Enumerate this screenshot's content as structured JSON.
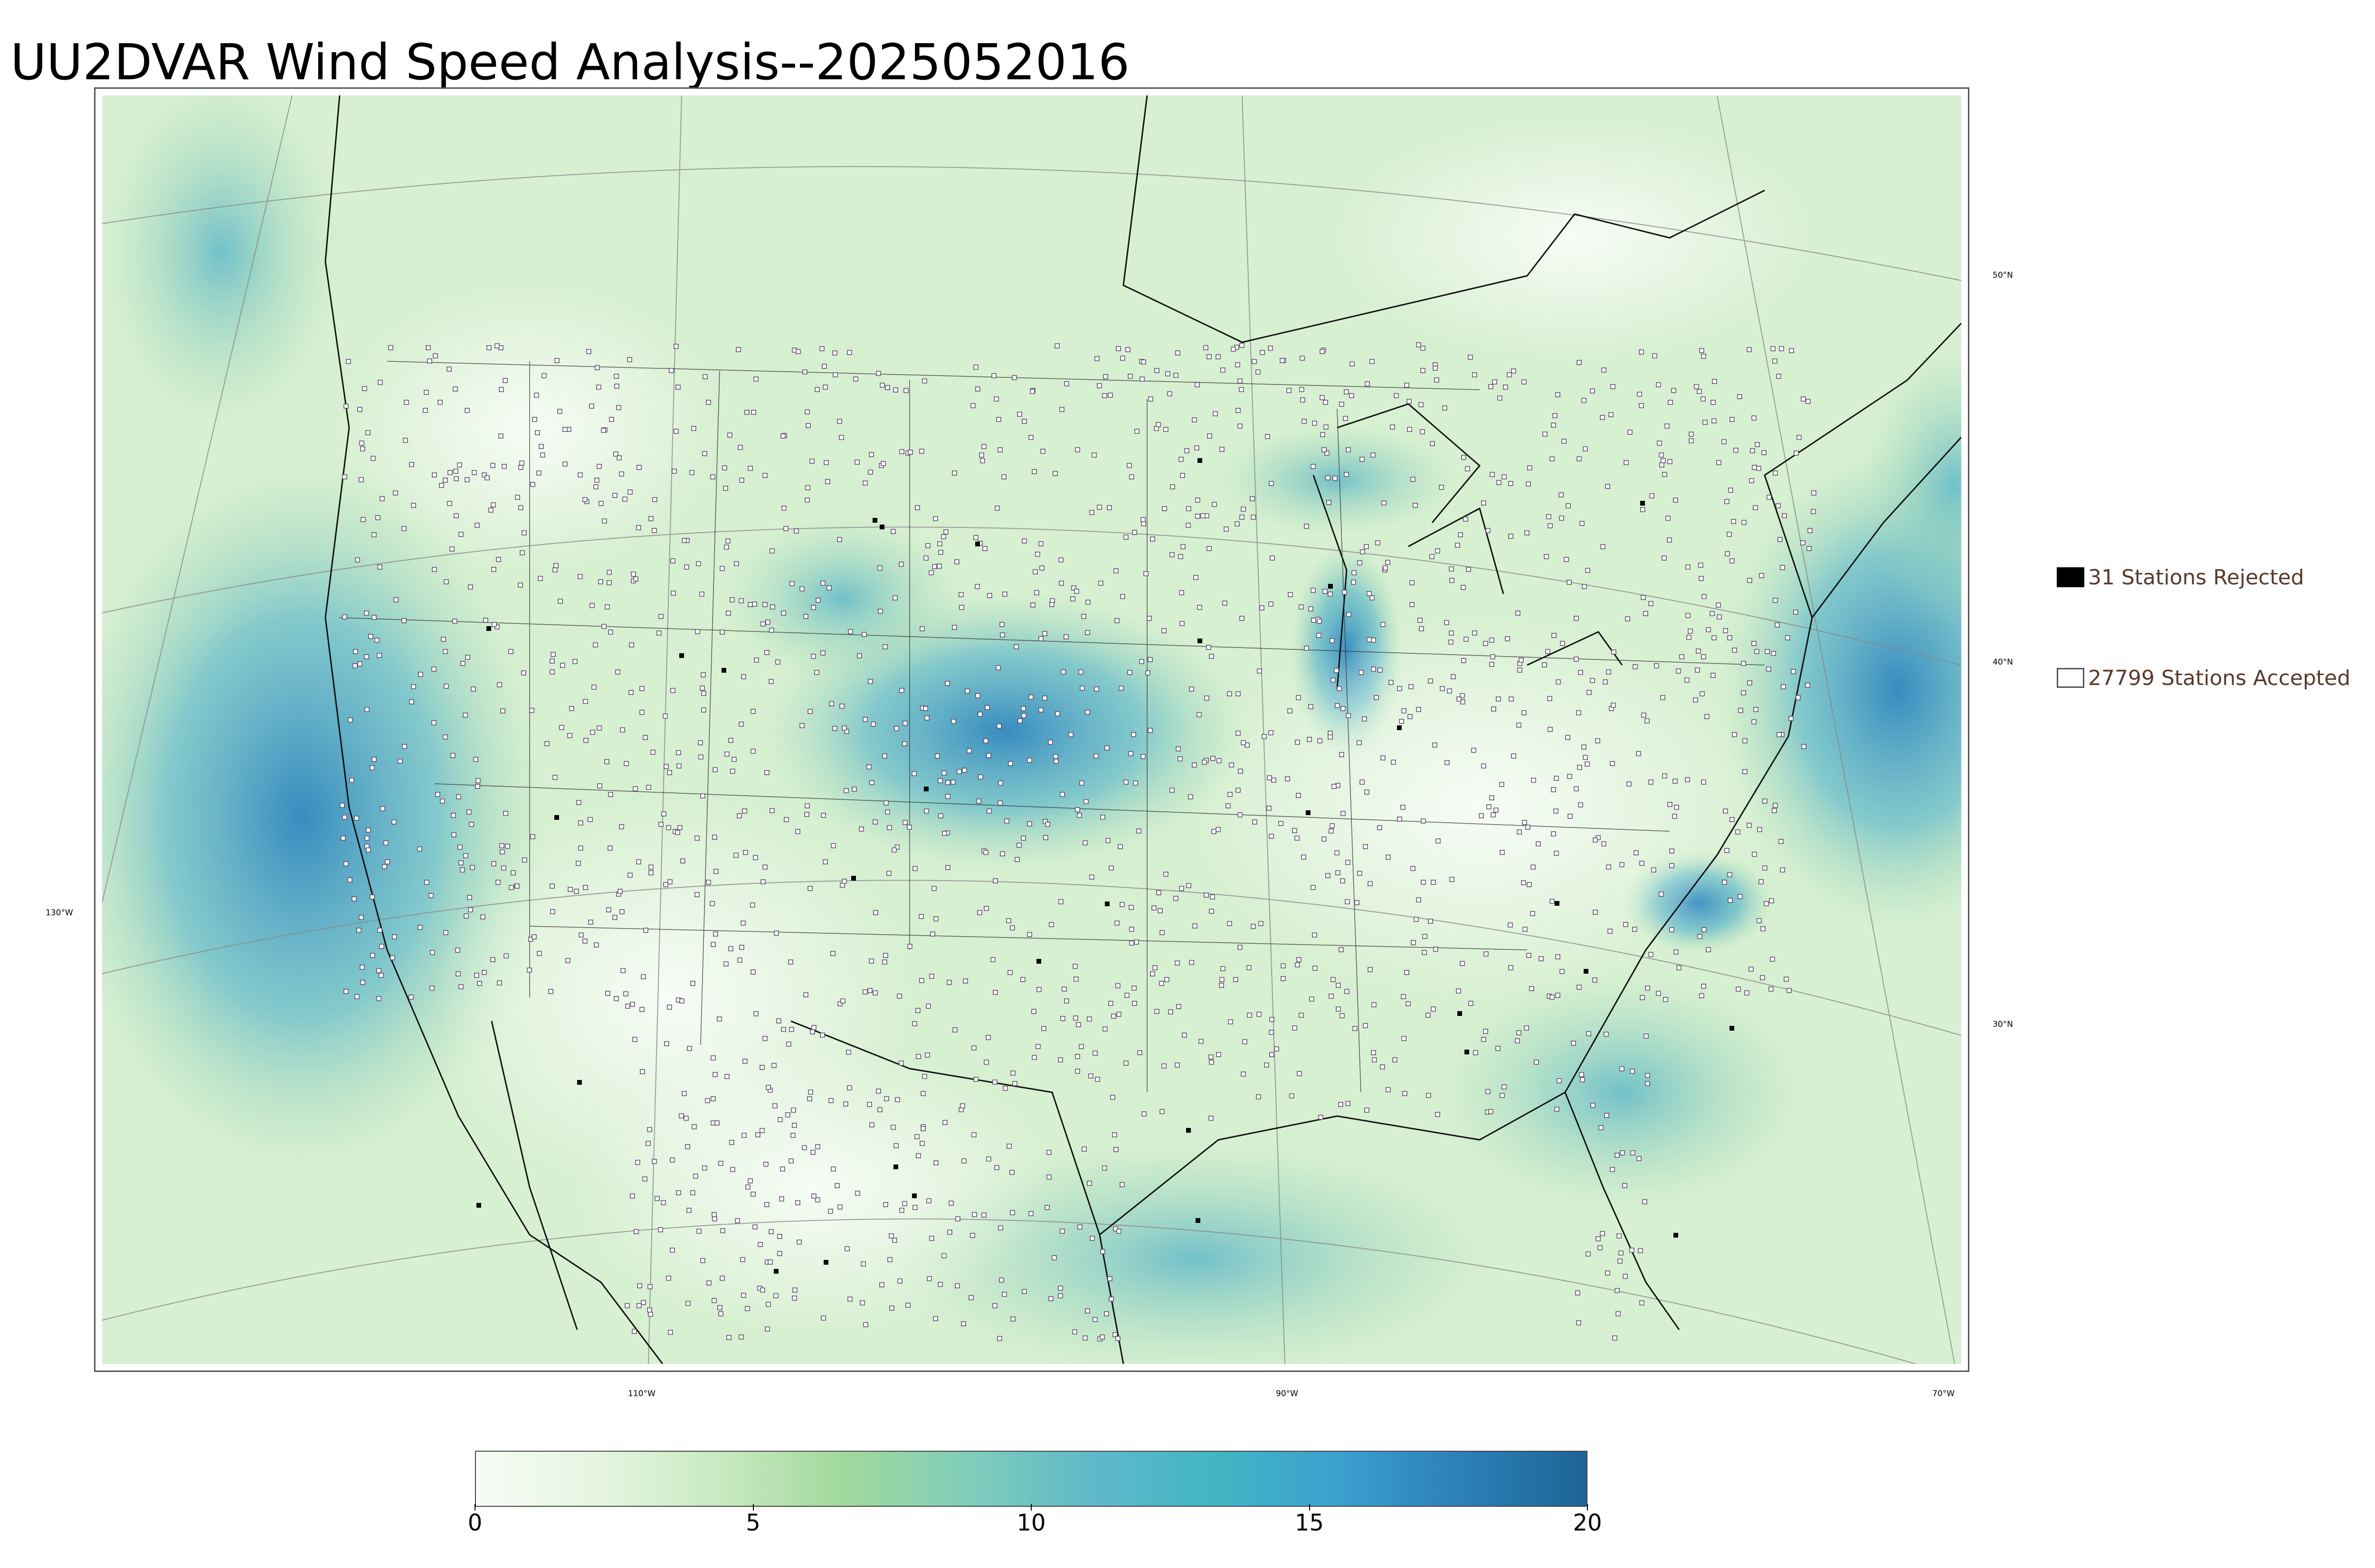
{
  "title": "UU2DVAR Wind Speed Analysis--2025052016",
  "map": {
    "lat_labels": [
      "50°N",
      "40°N",
      "30°N"
    ],
    "lon_labels": [
      "130°W",
      "110°W",
      "90°W",
      "70°W"
    ],
    "colors": {
      "water_calm": "#eef8ea",
      "wind_low": "#d8f0d2",
      "wind_mid": "#a9dcb2",
      "wind_high": "#5fb8c9",
      "wind_max": "#2f86bf",
      "coast": "#111111",
      "gridline": "#888888",
      "station_accepted_border": "#5a4a66"
    }
  },
  "legend": {
    "rejected": {
      "label": "31 Stations Rejected",
      "count": 31
    },
    "accepted": {
      "label": "27799 Stations Accepted",
      "count": 27799
    }
  },
  "colorbar": {
    "min": 0,
    "max": 20,
    "ticks": [
      "0",
      "5",
      "10",
      "15",
      "20"
    ],
    "stops": [
      "#f7fcf5",
      "#e5f5e0",
      "#c7e9c0",
      "#a1d99b",
      "#7fcdbb",
      "#5fb8c9",
      "#41b6c4",
      "#3b9fcf",
      "#2c7fb8",
      "#1d6496"
    ]
  }
}
